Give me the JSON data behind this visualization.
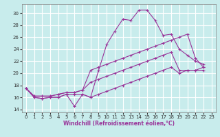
{
  "background_color": "#c8ecec",
  "grid_color": "#ffffff",
  "line_color": "#993399",
  "x_label": "Windchill (Refroidissement éolien,°C)",
  "xlim": [
    -0.5,
    23.5
  ],
  "ylim": [
    13.5,
    31.5
  ],
  "yticks": [
    14,
    16,
    18,
    20,
    22,
    24,
    26,
    28,
    30
  ],
  "xticks": [
    0,
    1,
    2,
    3,
    4,
    5,
    6,
    7,
    8,
    9,
    10,
    11,
    12,
    13,
    14,
    15,
    16,
    17,
    18,
    19,
    20,
    21,
    22,
    23
  ],
  "s1": [
    17.5,
    16.0,
    15.8,
    16.0,
    16.0,
    16.5,
    14.5,
    16.5,
    16.0,
    20.5,
    24.8,
    27.0,
    29.0,
    28.8,
    30.5,
    30.5,
    28.8,
    26.3,
    26.5,
    24.0,
    23.0,
    22.0,
    21.5
  ],
  "s2": [
    17.5,
    16.2,
    16.2,
    16.2,
    16.5,
    16.8,
    16.8,
    17.2,
    20.5,
    21.0,
    21.5,
    22.0,
    22.5,
    23.0,
    23.5,
    24.0,
    24.5,
    25.0,
    25.5,
    26.0,
    26.5,
    22.5,
    21.0
  ],
  "s3": [
    17.5,
    16.2,
    16.2,
    16.2,
    16.5,
    16.8,
    16.8,
    17.2,
    18.5,
    19.0,
    19.5,
    20.0,
    20.5,
    21.0,
    21.5,
    22.0,
    22.5,
    23.0,
    23.5,
    20.5,
    20.5,
    20.5,
    21.0
  ],
  "s4": [
    17.5,
    16.0,
    15.8,
    16.0,
    16.0,
    16.5,
    16.5,
    16.5,
    16.0,
    16.5,
    17.0,
    17.5,
    18.0,
    18.5,
    19.0,
    19.5,
    20.0,
    20.5,
    21.0,
    20.0,
    20.5,
    20.5,
    20.5
  ],
  "label_fontsize": 5.5,
  "tick_fontsize": 5.0
}
